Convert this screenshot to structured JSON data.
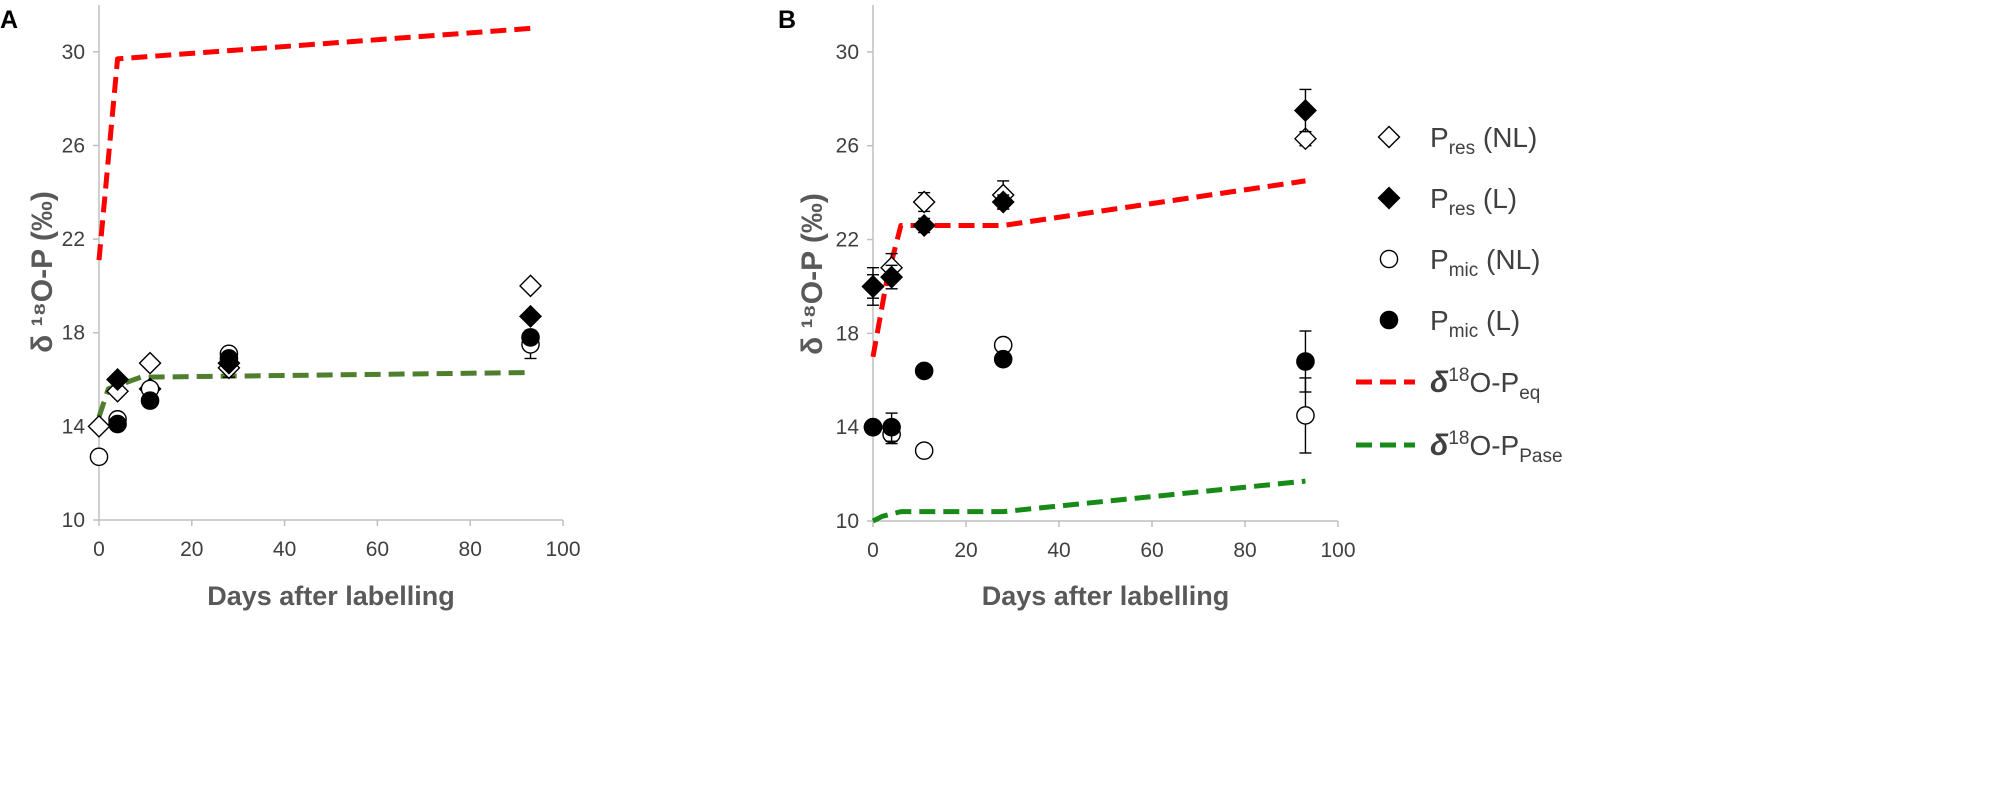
{
  "colors": {
    "axis": "#bfbfbf",
    "tick_text": "#404040",
    "label_text": "#595959",
    "eq_line": "#ff0000",
    "pase_line": "#4f7f2e",
    "pase_line_b": "#188a18"
  },
  "chart_data": [
    {
      "panel": "A",
      "type": "scatter",
      "xlabel": "Days after labelling",
      "ylabel": "δ ¹⁸O-P (‰)",
      "xlim": [
        0,
        100
      ],
      "ylim": [
        10,
        32
      ],
      "xticks": [
        0,
        20,
        40,
        60,
        80,
        100
      ],
      "yticks": [
        10,
        14,
        18,
        22,
        26,
        30
      ],
      "lines": [
        {
          "name": "δ18O-Peq",
          "style": "dashed",
          "color_key": "eq_line",
          "x": [
            0,
            4,
            93
          ],
          "y": [
            21.1,
            29.7,
            31.0
          ]
        },
        {
          "name": "δ18O-PPase",
          "style": "dashed",
          "color_key": "pase_line",
          "x": [
            0,
            2,
            9,
            93
          ],
          "y": [
            14.4,
            15.6,
            16.1,
            16.3
          ]
        }
      ],
      "series": [
        {
          "name": "Pres (NL)",
          "marker": "diamond-open",
          "x": [
            0,
            4,
            11,
            28,
            93
          ],
          "y": [
            14.0,
            15.5,
            16.7,
            16.5,
            20.0
          ],
          "err": [
            0,
            0,
            0,
            0.4,
            0
          ]
        },
        {
          "name": "Pres (L)",
          "marker": "diamond-filled",
          "x": [
            4,
            11,
            28,
            93
          ],
          "y": [
            16.0,
            15.6,
            16.7,
            18.7
          ],
          "err": [
            0,
            0,
            0,
            0
          ]
        },
        {
          "name": "Pmic (NL)",
          "marker": "circle-open",
          "x": [
            0,
            4,
            11,
            28,
            93
          ],
          "y": [
            12.7,
            14.3,
            15.6,
            17.1,
            17.5
          ],
          "err": [
            0,
            0,
            0,
            0,
            0.6
          ]
        },
        {
          "name": "Pmic (L)",
          "marker": "circle-filled",
          "x": [
            4,
            11,
            28,
            93
          ],
          "y": [
            14.1,
            15.1,
            16.9,
            17.8
          ],
          "err": [
            0,
            0,
            0,
            0
          ]
        }
      ]
    },
    {
      "panel": "B",
      "type": "scatter",
      "xlabel": "Days after labelling",
      "ylabel": "δ ¹⁸O-P (‰)",
      "xlim": [
        0,
        100
      ],
      "ylim": [
        10,
        32
      ],
      "xticks": [
        0,
        20,
        40,
        60,
        80,
        100
      ],
      "yticks": [
        10,
        14,
        18,
        22,
        26,
        30
      ],
      "lines": [
        {
          "name": "δ18O-Peq",
          "style": "dashed",
          "color_key": "eq_line",
          "x": [
            0,
            3,
            6,
            28,
            93
          ],
          "y": [
            17.0,
            20.3,
            22.6,
            22.6,
            24.5
          ]
        },
        {
          "name": "δ18O-PPase",
          "style": "dashed",
          "color_key": "pase_line_b",
          "x": [
            0,
            2,
            6,
            28,
            93
          ],
          "y": [
            10.0,
            10.2,
            10.4,
            10.4,
            11.7
          ]
        }
      ],
      "series": [
        {
          "name": "Pres (NL)",
          "marker": "diamond-open",
          "x": [
            0,
            4,
            11,
            28,
            93
          ],
          "y": [
            20.0,
            20.8,
            23.6,
            23.9,
            26.3
          ],
          "err": [
            0.8,
            0.6,
            0.4,
            0.6,
            0.3
          ]
        },
        {
          "name": "Pres (L)",
          "marker": "diamond-filled",
          "x": [
            0,
            4,
            11,
            28,
            93
          ],
          "y": [
            20.0,
            20.4,
            22.6,
            23.6,
            27.5
          ],
          "err": [
            0.5,
            0.5,
            0.3,
            0.3,
            0.9
          ]
        },
        {
          "name": "Pmic (NL)",
          "marker": "circle-open",
          "x": [
            0,
            4,
            11,
            28,
            93
          ],
          "y": [
            14.0,
            13.7,
            13.0,
            17.5,
            14.5
          ],
          "err": [
            0,
            0.4,
            0,
            0,
            1.6
          ]
        },
        {
          "name": "Pmic (L)",
          "marker": "circle-filled",
          "x": [
            0,
            4,
            11,
            28,
            93
          ],
          "y": [
            14.0,
            14.0,
            16.4,
            16.9,
            16.8
          ],
          "err": [
            0,
            0.6,
            0,
            0,
            1.3
          ]
        }
      ]
    }
  ],
  "legend": {
    "items": [
      {
        "marker": "diamond-open",
        "main": "P",
        "sub": "res",
        "suffix": " (NL)"
      },
      {
        "marker": "diamond-filled",
        "main": "P",
        "sub": "res",
        "suffix": " (L)"
      },
      {
        "marker": "circle-open",
        "main": "P",
        "sub": "mic",
        "suffix": " (NL)"
      },
      {
        "marker": "circle-filled",
        "main": "P",
        "sub": "mic",
        "suffix": " (L)"
      },
      {
        "marker": "line-eq",
        "delta": "δ",
        "sup": "18",
        "main": "O-P",
        "sub": "eq",
        "suffix": ""
      },
      {
        "marker": "line-pase",
        "delta": "δ",
        "sup": "18",
        "main": "O-P",
        "sub": "Pase",
        "suffix": ""
      }
    ]
  }
}
